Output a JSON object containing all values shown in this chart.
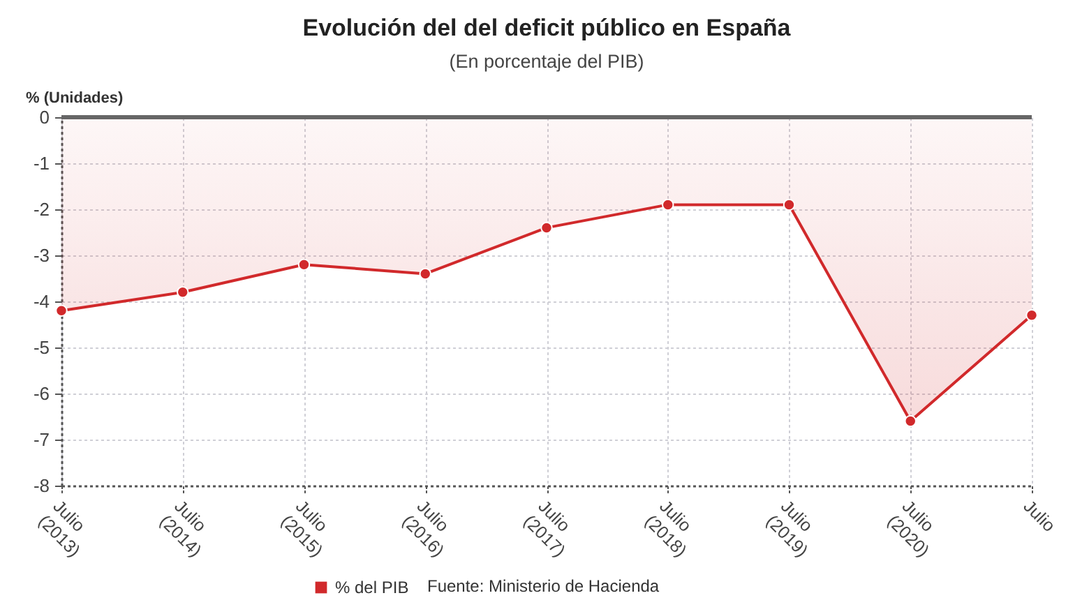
{
  "chart_data": {
    "type": "area",
    "title": "Evolución del del deficit público en España",
    "subtitle": "(En porcentaje del PIB)",
    "ylabel": "% (Unidades)",
    "categories": [
      "Julio (2013)",
      "Julio (2014)",
      "Julio (2015)",
      "Julio (2016)",
      "Julio (2017)",
      "Julio (2018)",
      "Julio (2019)",
      "Julio (2020)",
      "Julio"
    ],
    "series": [
      {
        "name": "% del PIB",
        "color": "#d1292b",
        "values": [
          -4.2,
          -3.8,
          -3.2,
          -3.4,
          -2.4,
          -1.9,
          -1.9,
          -6.6,
          -4.3
        ]
      }
    ],
    "ylim": [
      -8,
      0
    ],
    "yticks": [
      -8,
      -7,
      -6,
      -5,
      -4,
      -3,
      -2,
      -1,
      0
    ],
    "grid": true,
    "legend": "bottom",
    "marker": "circle",
    "line_style": "solid",
    "ref_lines": [
      {
        "axis": "y",
        "value": 0,
        "color": "#666666"
      }
    ],
    "annotations": [
      "Fuente: Ministerio de Hacienda"
    ]
  }
}
